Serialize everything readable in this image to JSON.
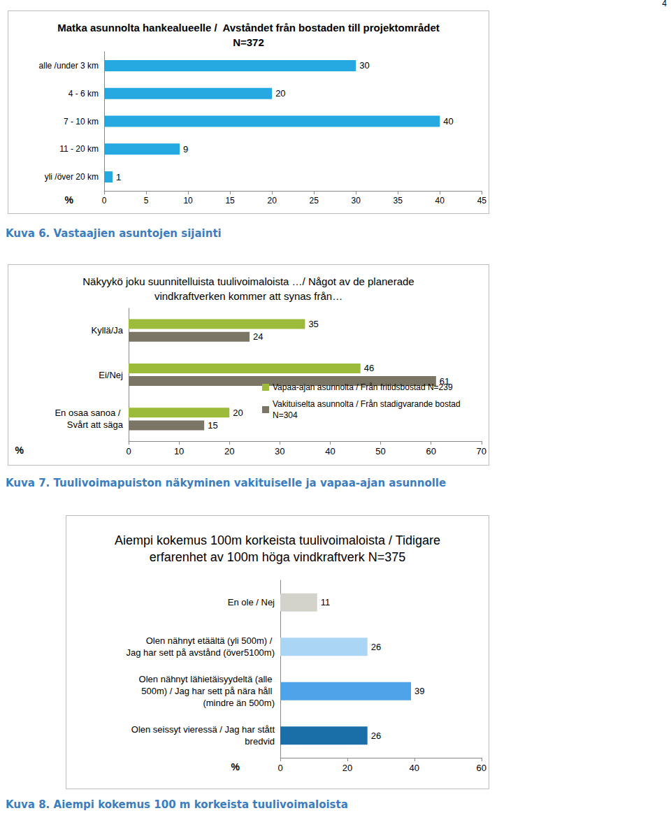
{
  "page_number": 4,
  "chart_data": [
    {
      "type": "bar",
      "orientation": "horizontal",
      "title": "Matka asunnolta hankealueelle /  Avståndet från bostaden till projektområdet\nN=372",
      "caption": "Kuva 6. Vastaajien asuntojen sijainti",
      "xlabel": "%",
      "categories": [
        "alle /under 3 km",
        "4 - 6 km",
        "7 - 10 km",
        "11 - 20 km",
        "yli /över 20 km"
      ],
      "values": [
        30,
        20,
        40,
        9,
        1
      ],
      "color": "#25a9e0",
      "xlim": [
        0,
        45
      ],
      "xticks": [
        0,
        5,
        10,
        15,
        20,
        25,
        30,
        35,
        40,
        45
      ],
      "grid": false,
      "data_labels": true
    },
    {
      "type": "bar",
      "orientation": "horizontal",
      "title": "Näkyykö joku suunnitelluista tuulivoimaloista …/ Något av de planerade\nvindkraftverken kommer att synas från…",
      "caption": "Kuva 7. Tuulivoimapuiston näkyminen vakituiselle ja vapaa-ajan asunnolle",
      "xlabel": "%",
      "categories": [
        "Kyllä/Ja",
        "Ei/Nej",
        "En osaa sanoa / Svårt att säga"
      ],
      "series": [
        {
          "name": "Vapaa-ajan asunnolta / Från fritidsbostad N=239",
          "color": "#9dbb3a",
          "values": [
            35,
            46,
            20
          ]
        },
        {
          "name": "Vakituiselta asunnolta / Från stadigvarande bostad N=304",
          "color": "#7b7566",
          "values": [
            24,
            61,
            15
          ]
        }
      ],
      "xlim": [
        0,
        70
      ],
      "xticks": [
        0,
        10,
        20,
        30,
        40,
        50,
        60,
        70
      ],
      "grid": false,
      "data_labels": true,
      "legend": "lower right"
    },
    {
      "type": "bar",
      "orientation": "horizontal",
      "title": "Aiempi kokemus 100m korkeista tuulivoimaloista / Tidigare\nerfarenhet av 100m höga vindkraftverk N=375",
      "caption": "Kuva 8. Aiempi kokemus 100 m korkeista tuulivoimaloista",
      "xlabel": "%",
      "categories": [
        "En ole / Nej",
        "Olen nähnyt etäältä (yli 500m) / Jag har sett på avstånd (över5100m)",
        "Olen nähnyt lähietäisyydeltä (alle 500m) / Jag har sett på nära håll (mindre än 500m)",
        "Olen seissyt vieressä / Jag har stått bredvid"
      ],
      "values": [
        11,
        26,
        39,
        26
      ],
      "colors": [
        "#d3d3cb",
        "#abd5f5",
        "#4ea3e9",
        "#1a6fa8"
      ],
      "xlim": [
        0,
        60
      ],
      "xticks": [
        0,
        20,
        40,
        60
      ],
      "grid": false,
      "data_labels": true
    }
  ]
}
